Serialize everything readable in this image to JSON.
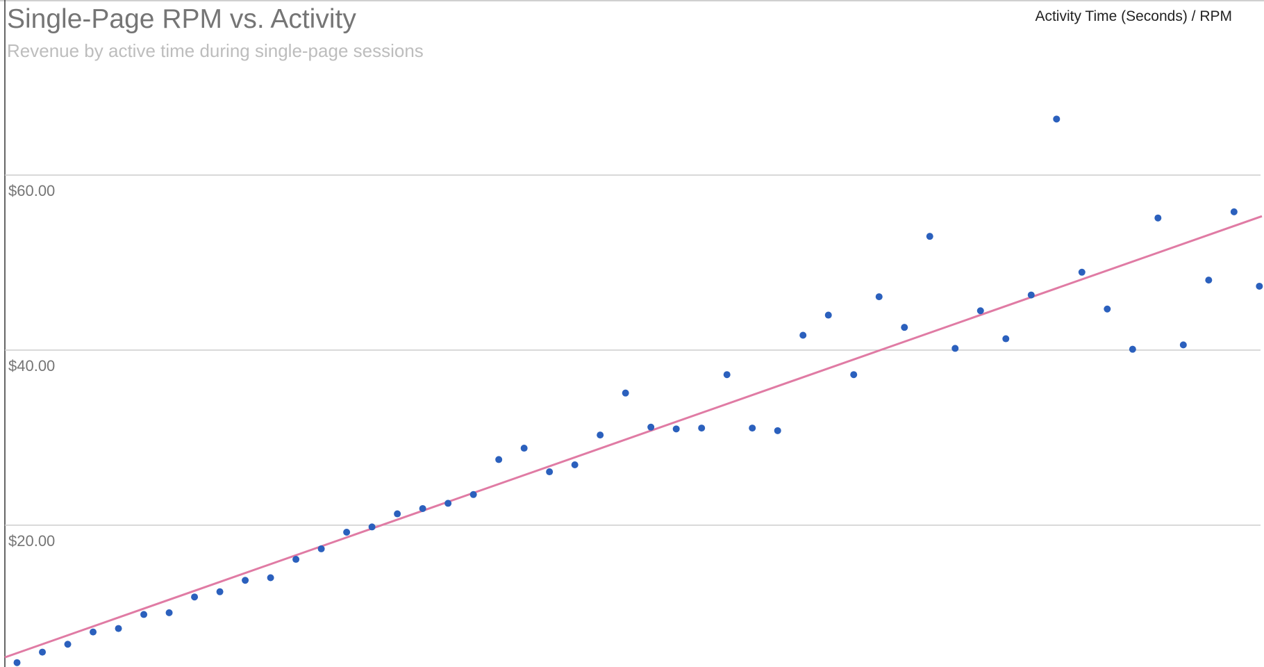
{
  "chart_data": {
    "type": "scatter",
    "title": "Single-Page RPM vs. Activity",
    "subtitle": "Revenue by active time during single-page sessions",
    "series": [
      {
        "name": "Activity Time (Seconds) / RPM",
        "color": "#2b60bd",
        "x": [
          1,
          2,
          3,
          4,
          5,
          6,
          7,
          8,
          9,
          10,
          11,
          12,
          13,
          14,
          15,
          16,
          17,
          18,
          19,
          20,
          21,
          22,
          23,
          24,
          25,
          26,
          27,
          28,
          29,
          30,
          31,
          32,
          33,
          34,
          35,
          36,
          37,
          38,
          39,
          40,
          41,
          42,
          43,
          44,
          45,
          46,
          47,
          48,
          49,
          50
        ],
        "values": [
          4.3,
          5.5,
          6.4,
          7.8,
          8.2,
          9.8,
          10.0,
          11.8,
          12.4,
          13.7,
          14.0,
          16.1,
          17.3,
          19.2,
          19.8,
          21.3,
          21.9,
          22.5,
          23.5,
          27.5,
          28.8,
          26.1,
          26.9,
          30.3,
          35.1,
          31.2,
          31.0,
          31.1,
          37.2,
          31.1,
          30.8,
          41.7,
          44.0,
          37.2,
          46.1,
          42.6,
          53.0,
          40.2,
          44.5,
          41.3,
          46.3,
          66.4,
          48.9,
          44.7,
          40.1,
          55.1,
          40.6,
          48.0,
          55.8,
          47.3
        ]
      }
    ],
    "trendline": {
      "color": "#e07ba4",
      "x": [
        0.52,
        50.1
      ],
      "values": [
        4.9,
        55.3
      ]
    },
    "xlim": [
      0.52,
      50.1
    ],
    "ylim": [
      3.8,
      80
    ],
    "yticks": [
      {
        "value": 20,
        "label": "$20.00"
      },
      {
        "value": 40,
        "label": "$40.00"
      },
      {
        "value": 60,
        "label": "$60.00"
      }
    ],
    "grid": true,
    "legend": "top-right"
  }
}
